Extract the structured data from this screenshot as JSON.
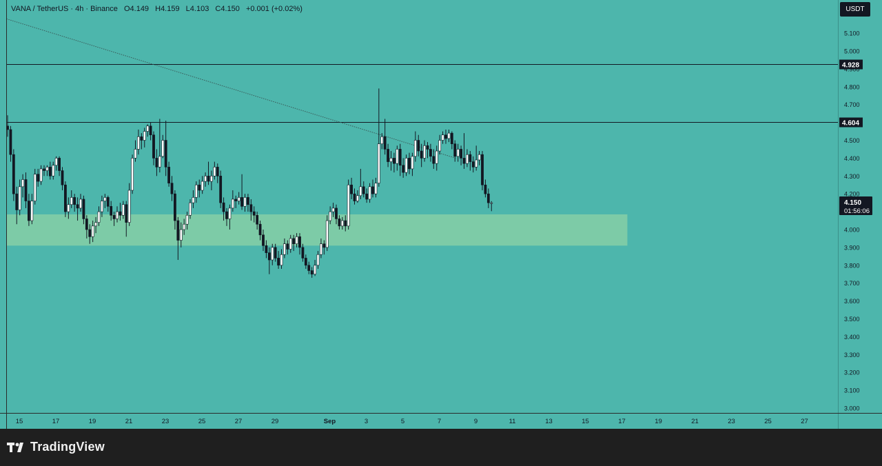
{
  "header": {
    "symbol": "VANA / TetherUS · 4h · Binance",
    "open": "O4.149",
    "high": "H4.159",
    "low": "L4.103",
    "close": "C4.150",
    "change": "+0.001 (+0.02%)"
  },
  "currency": "USDT",
  "price_tag": {
    "value": "4.150",
    "countdown": "01:56:06"
  },
  "brand": "TradingView",
  "colors": {
    "background": "#4db6ac",
    "up_body": "#ffffff",
    "down_body": "#131722",
    "zone": "#86cfa6",
    "line": "#131722"
  },
  "chart_data": {
    "type": "candlestick",
    "y_range": [
      3.0,
      5.2
    ],
    "y_ticks": [
      "5.100",
      "5.000",
      "4.900",
      "4.800",
      "4.700",
      "4.600",
      "4.500",
      "4.400",
      "4.300",
      "4.200",
      "4.100",
      "4.000",
      "3.900",
      "3.800",
      "3.700",
      "3.600",
      "3.500",
      "3.400",
      "3.300",
      "3.200",
      "3.100",
      "3.000"
    ],
    "x_ticks": [
      "15",
      "17",
      "19",
      "21",
      "23",
      "25",
      "27",
      "29",
      "Sep",
      "3",
      "5",
      "7",
      "9",
      "11",
      "13",
      "15",
      "17",
      "19",
      "21",
      "23",
      "25",
      "27"
    ],
    "x_tick_days": [
      0,
      2,
      4,
      6,
      8,
      10,
      12,
      14,
      17,
      19,
      21,
      23,
      25,
      27,
      29,
      31,
      33,
      35,
      37,
      39,
      41,
      43
    ],
    "horizontal_levels": [
      {
        "label": "4.928",
        "price": 4.928
      },
      {
        "label": "4.604",
        "price": 4.604
      }
    ],
    "support_zone": {
      "from": 3.91,
      "to": 4.085,
      "start_day": -0.7,
      "end_day": 33.3
    },
    "trendline": {
      "start": {
        "day": -0.7,
        "price": 5.18
      },
      "end": {
        "day": 23.9,
        "price": 4.4
      }
    },
    "candles": [
      [
        4.58,
        4.56,
        4.64,
        4.52
      ],
      [
        4.56,
        4.42,
        4.58,
        4.38
      ],
      [
        4.42,
        4.2,
        4.45,
        4.16
      ],
      [
        4.2,
        4.11,
        4.24,
        4.03
      ],
      [
        4.11,
        4.24,
        4.28,
        4.08
      ],
      [
        4.24,
        4.28,
        4.31,
        4.18
      ],
      [
        4.28,
        4.16,
        4.32,
        4.12
      ],
      [
        4.16,
        4.05,
        4.2,
        4.02
      ],
      [
        4.05,
        4.16,
        4.2,
        4.03
      ],
      [
        4.16,
        4.31,
        4.34,
        4.14
      ],
      [
        4.31,
        4.27,
        4.34,
        4.24
      ],
      [
        4.27,
        4.34,
        4.36,
        4.25
      ],
      [
        4.34,
        4.33,
        4.36,
        4.3
      ],
      [
        4.33,
        4.35,
        4.36,
        4.3
      ],
      [
        4.35,
        4.3,
        4.38,
        4.28
      ],
      [
        4.3,
        4.36,
        4.38,
        4.28
      ],
      [
        4.36,
        4.4,
        4.41,
        4.33
      ],
      [
        4.4,
        4.33,
        4.41,
        4.3
      ],
      [
        4.33,
        4.25,
        4.35,
        4.22
      ],
      [
        4.25,
        4.1,
        4.27,
        4.07
      ],
      [
        4.1,
        4.14,
        4.18,
        4.06
      ],
      [
        4.14,
        4.18,
        4.22,
        4.12
      ],
      [
        4.18,
        4.14,
        4.2,
        4.1
      ],
      [
        4.14,
        4.12,
        4.18,
        4.05
      ],
      [
        4.12,
        4.17,
        4.2,
        4.1
      ],
      [
        4.17,
        4.06,
        4.19,
        4.03
      ],
      [
        4.06,
        4.0,
        4.08,
        3.95
      ],
      [
        4.0,
        3.96,
        4.03,
        3.92
      ],
      [
        3.96,
        4.02,
        4.05,
        3.93
      ],
      [
        4.02,
        4.04,
        4.07,
        3.98
      ],
      [
        4.04,
        4.1,
        4.13,
        4.02
      ],
      [
        4.1,
        4.16,
        4.19,
        4.07
      ],
      [
        4.16,
        4.18,
        4.2,
        4.12
      ],
      [
        4.18,
        4.13,
        4.19,
        4.1
      ],
      [
        4.13,
        4.08,
        4.16,
        4.05
      ],
      [
        4.08,
        4.06,
        4.1,
        4.02
      ],
      [
        4.06,
        4.1,
        4.13,
        4.04
      ],
      [
        4.1,
        4.08,
        4.15,
        4.05
      ],
      [
        4.08,
        4.14,
        4.16,
        4.06
      ],
      [
        4.14,
        4.04,
        4.16,
        3.96
      ],
      [
        4.04,
        4.22,
        4.26,
        4.02
      ],
      [
        4.22,
        4.4,
        4.42,
        4.2
      ],
      [
        4.4,
        4.45,
        4.5,
        4.38
      ],
      [
        4.45,
        4.52,
        4.56,
        4.42
      ],
      [
        4.52,
        4.5,
        4.54,
        4.45
      ],
      [
        4.5,
        4.55,
        4.57,
        4.46
      ],
      [
        4.55,
        4.58,
        4.59,
        4.52
      ],
      [
        4.58,
        4.53,
        4.6,
        4.5
      ],
      [
        4.53,
        4.4,
        4.55,
        4.36
      ],
      [
        4.4,
        4.35,
        4.45,
        4.3
      ],
      [
        4.35,
        4.41,
        4.62,
        4.32
      ],
      [
        4.41,
        4.5,
        4.53,
        4.4
      ],
      [
        4.5,
        4.35,
        4.61,
        4.3
      ],
      [
        4.35,
        4.26,
        4.38,
        4.24
      ],
      [
        4.26,
        4.2,
        4.3,
        4.16
      ],
      [
        4.2,
        4.05,
        4.22,
        4.0
      ],
      [
        4.05,
        3.94,
        4.07,
        3.83
      ],
      [
        3.94,
        4.0,
        4.04,
        3.9
      ],
      [
        4.0,
        4.03,
        4.06,
        3.97
      ],
      [
        4.03,
        4.08,
        4.1,
        4.0
      ],
      [
        4.08,
        4.15,
        4.17,
        4.06
      ],
      [
        4.15,
        4.18,
        4.22,
        4.12
      ],
      [
        4.18,
        4.25,
        4.27,
        4.15
      ],
      [
        4.25,
        4.22,
        4.28,
        4.18
      ],
      [
        4.22,
        4.27,
        4.3,
        4.2
      ],
      [
        4.27,
        4.3,
        4.32,
        4.24
      ],
      [
        4.3,
        4.27,
        4.38,
        4.25
      ],
      [
        4.27,
        4.3,
        4.33,
        4.22
      ],
      [
        4.3,
        4.35,
        4.38,
        4.28
      ],
      [
        4.35,
        4.3,
        4.37,
        4.26
      ],
      [
        4.3,
        4.15,
        4.33,
        4.12
      ],
      [
        4.15,
        4.1,
        4.18,
        4.05
      ],
      [
        4.1,
        4.06,
        4.12,
        4.02
      ],
      [
        4.06,
        4.12,
        4.14,
        4.0
      ],
      [
        4.12,
        4.17,
        4.22,
        4.1
      ],
      [
        4.17,
        4.16,
        4.19,
        4.12
      ],
      [
        4.16,
        4.18,
        4.21,
        4.14
      ],
      [
        4.18,
        4.13,
        4.31,
        4.11
      ],
      [
        4.13,
        4.18,
        4.2,
        4.1
      ],
      [
        4.18,
        4.14,
        4.2,
        4.1
      ],
      [
        4.14,
        4.1,
        4.17,
        4.05
      ],
      [
        4.1,
        4.08,
        4.13,
        4.04
      ],
      [
        4.08,
        4.03,
        4.1,
        4.0
      ],
      [
        4.03,
        3.97,
        4.05,
        3.94
      ],
      [
        3.97,
        3.91,
        4.0,
        3.88
      ],
      [
        3.91,
        3.87,
        3.94,
        3.84
      ],
      [
        3.87,
        3.83,
        3.9,
        3.75
      ],
      [
        3.83,
        3.9,
        3.92,
        3.8
      ],
      [
        3.9,
        3.84,
        3.92,
        3.82
      ],
      [
        3.84,
        3.8,
        3.88,
        3.78
      ],
      [
        3.8,
        3.86,
        3.89,
        3.78
      ],
      [
        3.86,
        3.92,
        3.95,
        3.84
      ],
      [
        3.92,
        3.89,
        3.94,
        3.86
      ],
      [
        3.89,
        3.95,
        3.97,
        3.87
      ],
      [
        3.95,
        3.92,
        3.97,
        3.88
      ],
      [
        3.92,
        3.96,
        3.98,
        3.9
      ],
      [
        3.96,
        3.9,
        3.98,
        3.86
      ],
      [
        3.9,
        3.84,
        3.92,
        3.82
      ],
      [
        3.84,
        3.8,
        3.86,
        3.78
      ],
      [
        3.8,
        3.77,
        3.82,
        3.75
      ],
      [
        3.77,
        3.75,
        3.79,
        3.73
      ],
      [
        3.75,
        3.8,
        3.83,
        3.74
      ],
      [
        3.8,
        3.86,
        3.88,
        3.78
      ],
      [
        3.86,
        3.92,
        3.95,
        3.84
      ],
      [
        3.92,
        3.9,
        3.94,
        3.86
      ],
      [
        3.9,
        4.05,
        4.08,
        3.88
      ],
      [
        4.05,
        4.1,
        4.13,
        4.03
      ],
      [
        4.1,
        4.12,
        4.15,
        4.07
      ],
      [
        4.12,
        4.06,
        4.14,
        4.03
      ],
      [
        4.06,
        4.02,
        4.08,
        4.0
      ],
      [
        4.02,
        4.05,
        4.07,
        4.0
      ],
      [
        4.05,
        4.02,
        4.08,
        3.99
      ],
      [
        4.02,
        4.25,
        4.28,
        4.0
      ],
      [
        4.25,
        4.2,
        4.29,
        4.17
      ],
      [
        4.2,
        4.16,
        4.23,
        4.14
      ],
      [
        4.16,
        4.19,
        4.22,
        4.15
      ],
      [
        4.19,
        4.24,
        4.34,
        4.17
      ],
      [
        4.24,
        4.2,
        4.27,
        4.18
      ],
      [
        4.2,
        4.17,
        4.23,
        4.15
      ],
      [
        4.17,
        4.24,
        4.26,
        4.15
      ],
      [
        4.24,
        4.2,
        4.28,
        4.18
      ],
      [
        4.2,
        4.26,
        4.29,
        4.18
      ],
      [
        4.26,
        4.48,
        4.79,
        4.24
      ],
      [
        4.48,
        4.52,
        4.54,
        4.45
      ],
      [
        4.52,
        4.45,
        4.62,
        4.42
      ],
      [
        4.45,
        4.38,
        4.48,
        4.35
      ],
      [
        4.38,
        4.4,
        4.44,
        4.33
      ],
      [
        4.4,
        4.37,
        4.43,
        4.32
      ],
      [
        4.37,
        4.45,
        4.47,
        4.33
      ],
      [
        4.45,
        4.36,
        4.48,
        4.3
      ],
      [
        4.36,
        4.32,
        4.4,
        4.29
      ],
      [
        4.32,
        4.4,
        4.42,
        4.3
      ],
      [
        4.4,
        4.34,
        4.43,
        4.31
      ],
      [
        4.34,
        4.41,
        4.43,
        4.3
      ],
      [
        4.41,
        4.5,
        4.55,
        4.38
      ],
      [
        4.5,
        4.44,
        4.53,
        4.41
      ],
      [
        4.44,
        4.4,
        4.48,
        4.35
      ],
      [
        4.4,
        4.47,
        4.5,
        4.38
      ],
      [
        4.47,
        4.45,
        4.49,
        4.4
      ],
      [
        4.45,
        4.41,
        4.48,
        4.38
      ],
      [
        4.41,
        4.37,
        4.45,
        4.34
      ],
      [
        4.37,
        4.44,
        4.47,
        4.33
      ],
      [
        4.44,
        4.5,
        4.53,
        4.42
      ],
      [
        4.5,
        4.53,
        4.55,
        4.48
      ],
      [
        4.53,
        4.51,
        4.56,
        4.48
      ],
      [
        4.51,
        4.54,
        4.56,
        4.49
      ],
      [
        4.54,
        4.48,
        4.55,
        4.45
      ],
      [
        4.48,
        4.41,
        4.5,
        4.38
      ],
      [
        4.41,
        4.45,
        4.48,
        4.38
      ],
      [
        4.45,
        4.4,
        4.47,
        4.36
      ],
      [
        4.4,
        4.37,
        4.54,
        4.34
      ],
      [
        4.37,
        4.42,
        4.45,
        4.35
      ],
      [
        4.42,
        4.38,
        4.44,
        4.33
      ],
      [
        4.38,
        4.35,
        4.41,
        4.32
      ],
      [
        4.35,
        4.39,
        4.47,
        4.33
      ],
      [
        4.39,
        4.42,
        4.44,
        4.36
      ],
      [
        4.42,
        4.25,
        4.44,
        4.22
      ],
      [
        4.25,
        4.2,
        4.28,
        4.18
      ],
      [
        4.2,
        4.15,
        4.23,
        4.12
      ],
      [
        4.149,
        4.15,
        4.159,
        4.103
      ]
    ]
  }
}
